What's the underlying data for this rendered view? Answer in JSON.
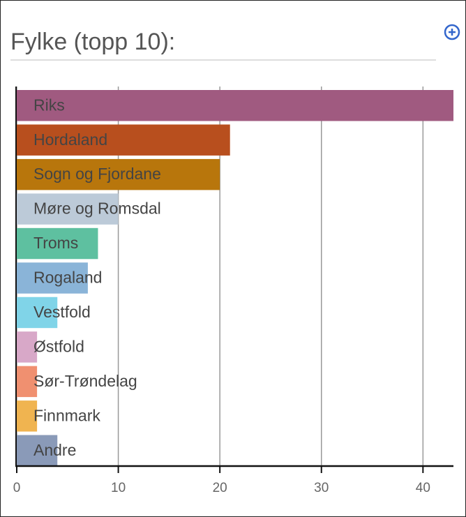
{
  "chart_data": {
    "type": "barh",
    "title": "Fylke (topp 10):",
    "categories": [
      "Riks",
      "Hordaland",
      "Sogn og Fjordane",
      "Møre og Romsdal",
      "Troms",
      "Rogaland",
      "Vestfold",
      "Østfold",
      "Sør-Trøndelag",
      "Finnmark",
      "Andre"
    ],
    "values": [
      43,
      21,
      20,
      10,
      8,
      7,
      4,
      2,
      2,
      2,
      4
    ],
    "colors": [
      "#a05a80",
      "#b84f1e",
      "#b8760c",
      "#bccad8",
      "#5ec0a0",
      "#8ab4d8",
      "#80d4e8",
      "#d8a8c8",
      "#f09070",
      "#f0b450",
      "#8a9ab8"
    ],
    "xlim": [
      0,
      43
    ],
    "xticks": [
      0,
      10,
      20,
      30,
      40
    ],
    "grid": true
  }
}
